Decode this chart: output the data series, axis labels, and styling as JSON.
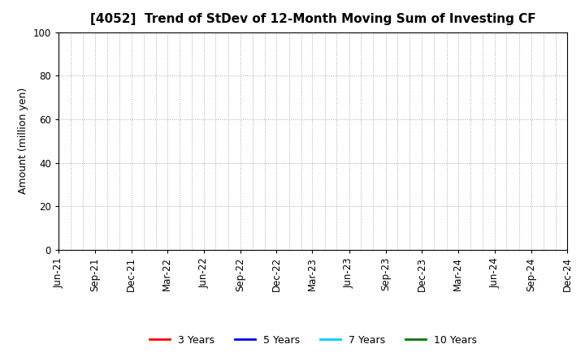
{
  "title": "[4052]  Trend of StDev of 12-Month Moving Sum of Investing CF",
  "ylabel": "Amount (million yen)",
  "ylim": [
    0,
    100
  ],
  "yticks": [
    0,
    20,
    40,
    60,
    80,
    100
  ],
  "x_tick_labels": [
    "Jun-21",
    "Sep-21",
    "Dec-21",
    "Mar-22",
    "Jun-22",
    "Sep-22",
    "Dec-22",
    "Mar-23",
    "Jun-23",
    "Sep-23",
    "Dec-23",
    "Mar-24",
    "Jun-24",
    "Sep-24",
    "Dec-24"
  ],
  "background_color": "#ffffff",
  "plot_bg_color": "#ffffff",
  "grid_color": "#aaaaaa",
  "legend_entries": [
    {
      "label": "3 Years",
      "color": "#ff0000",
      "lw": 2
    },
    {
      "label": "5 Years",
      "color": "#0000dd",
      "lw": 2
    },
    {
      "label": "7 Years",
      "color": "#00ccee",
      "lw": 2
    },
    {
      "label": "10 Years",
      "color": "#007700",
      "lw": 2
    }
  ],
  "title_fontsize": 11,
  "tick_fontsize": 8.5,
  "ylabel_fontsize": 9,
  "legend_fontsize": 9
}
